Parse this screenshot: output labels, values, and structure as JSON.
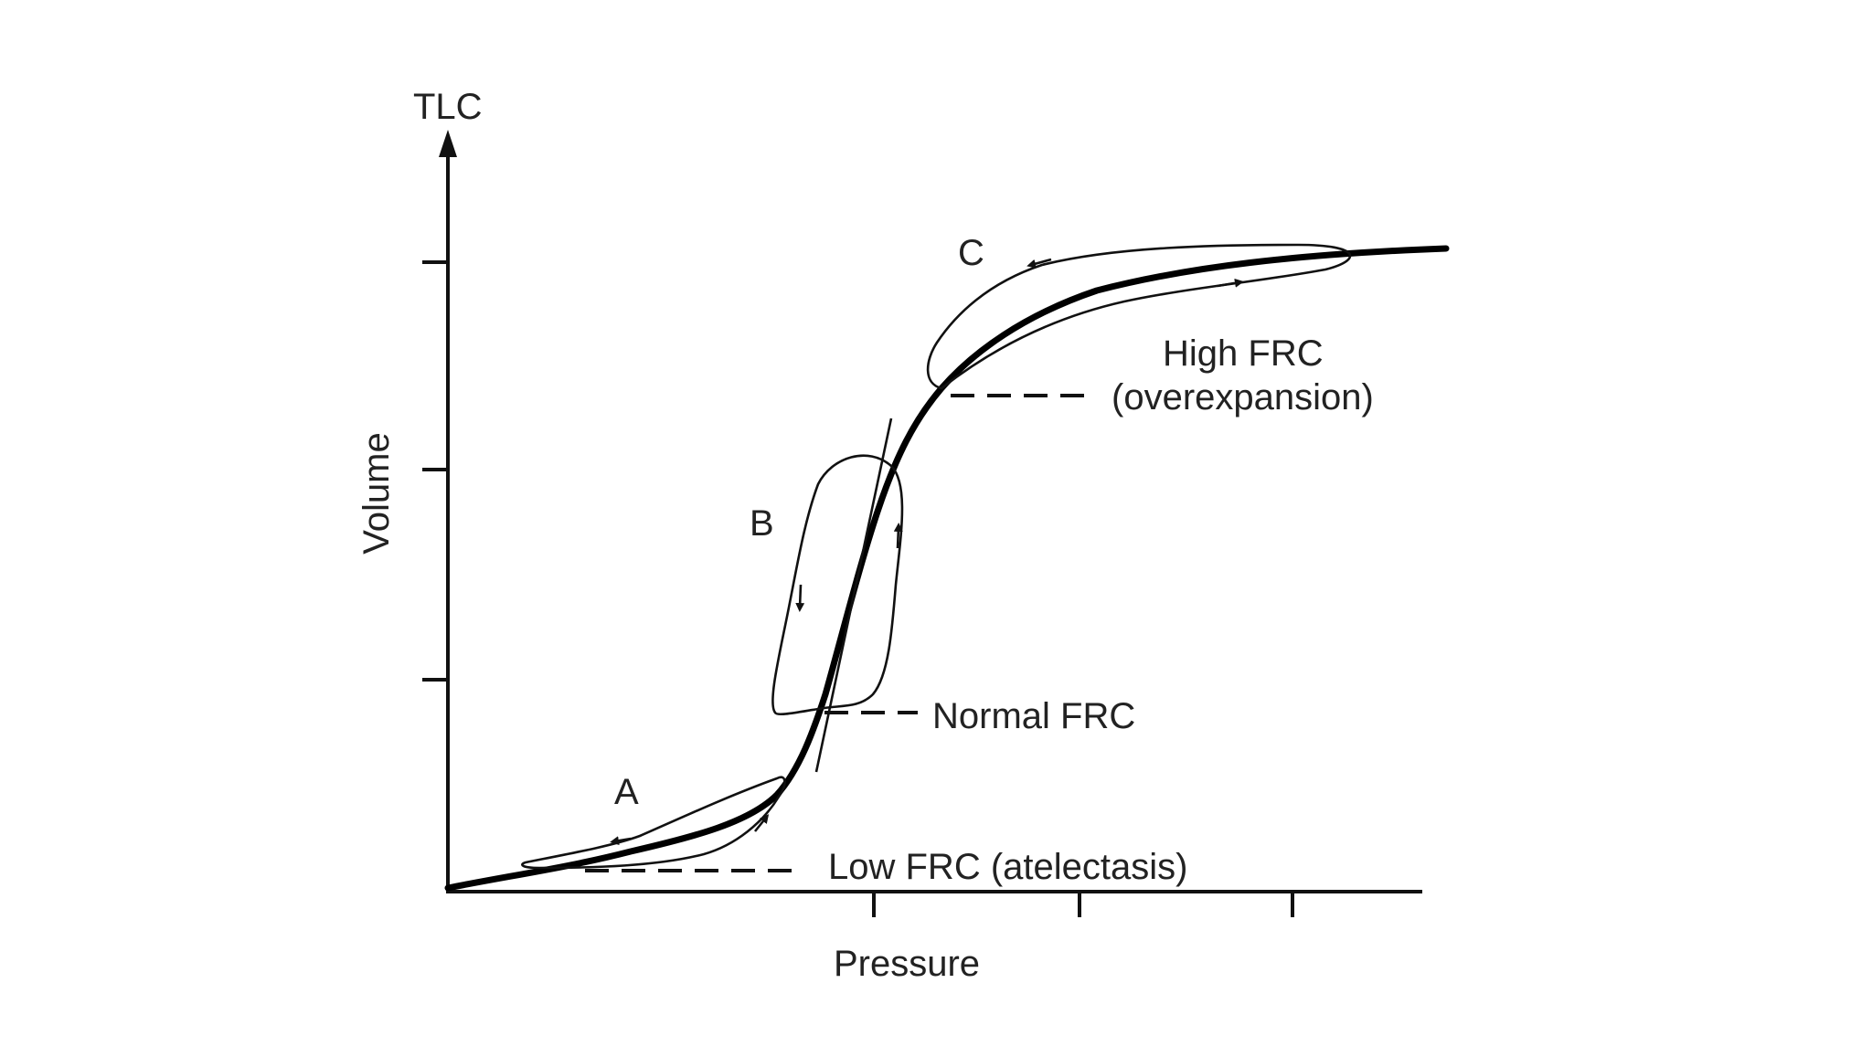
{
  "diagram": {
    "axes": {
      "y_label": "Volume",
      "y_top_label": "TLC",
      "x_label": "Pressure"
    },
    "loops": {
      "a": "A",
      "b": "B",
      "c": "C"
    },
    "annotations": {
      "high_frc_line1": "High FRC",
      "high_frc_line2": "(overexpansion)",
      "normal_frc": "Normal FRC",
      "low_frc": "Low FRC (atelectasis)"
    }
  }
}
